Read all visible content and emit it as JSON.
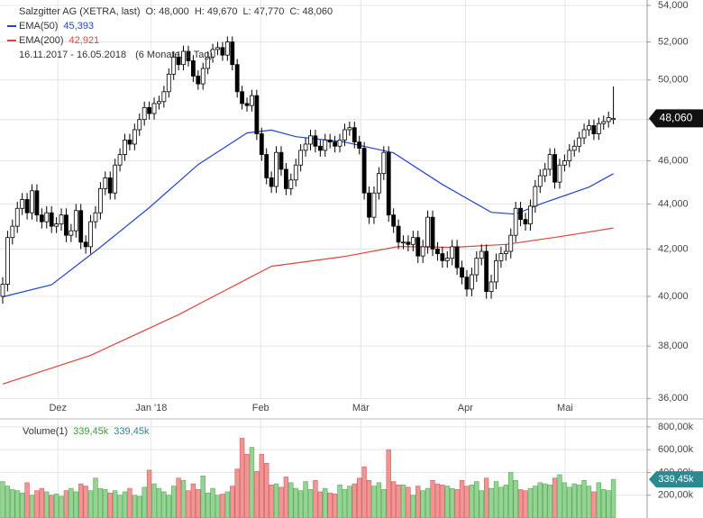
{
  "chart_data": {
    "type": "candlestick",
    "title": "Salzgitter AG (XETRA, last)",
    "ohlc_labels": [
      "O: 48,000",
      "H: 49,670",
      "L: 47,770",
      "C: 48,060"
    ],
    "date_range": "16.11.2017 - 16.05.2018",
    "period": "(6 Monate, 1 Tag)",
    "last_label": "48,060",
    "log_scale": true,
    "grid": true,
    "ylim": [
      35.25,
      54.3
    ],
    "yticks": [
      {
        "value": 36,
        "label": "36,000"
      },
      {
        "value": 38,
        "label": "38,000"
      },
      {
        "value": 40,
        "label": "40,000"
      },
      {
        "value": 42,
        "label": "42,000"
      },
      {
        "value": 44,
        "label": "44,000"
      },
      {
        "value": 46,
        "label": "46,000"
      },
      {
        "value": 48,
        "label": "48,000"
      },
      {
        "value": 50,
        "label": "50,000"
      },
      {
        "value": 52,
        "label": "52,000"
      },
      {
        "value": 54,
        "label": "54,000"
      }
    ],
    "xlim": [
      -0.55,
      131.9
    ],
    "xticks": [
      {
        "value": 11.3,
        "label": "Dez"
      },
      {
        "value": 30.4,
        "label": "Jan '18"
      },
      {
        "value": 52.8,
        "label": "Feb"
      },
      {
        "value": 73.3,
        "label": "Mär"
      },
      {
        "value": 94.7,
        "label": "Apr"
      },
      {
        "value": 115.1,
        "label": "Mai"
      }
    ],
    "up_color": "#ffffff",
    "down_color": "#000000",
    "candles": [
      [
        40,
        40.8,
        39.7,
        40.5
      ],
      [
        40.5,
        42.8,
        40.2,
        42.5
      ],
      [
        42.5,
        43.3,
        42.2,
        43
      ],
      [
        43,
        44.1,
        42.7,
        43.8
      ],
      [
        43.8,
        44.5,
        43.5,
        44.2
      ],
      [
        44.2,
        44.5,
        43.3,
        43.6
      ],
      [
        43.6,
        44.9,
        43.3,
        44.6
      ],
      [
        44.6,
        44.9,
        43.2,
        43.5
      ],
      [
        43.5,
        43.8,
        42.9,
        43.2
      ],
      [
        43.2,
        43.9,
        42.9,
        43.6
      ],
      [
        43.6,
        43.9,
        42.7,
        43
      ],
      [
        43,
        43.4,
        42.7,
        43.1
      ],
      [
        43.1,
        43.8,
        42.8,
        43.5
      ],
      [
        43.5,
        43.8,
        42.3,
        42.6
      ],
      [
        42.6,
        43.1,
        42.3,
        42.8
      ],
      [
        42.8,
        44,
        42.5,
        43.7
      ],
      [
        43.7,
        44,
        42,
        42.3
      ],
      [
        42.3,
        42.6,
        41.8,
        42.1
      ],
      [
        42.1,
        43.5,
        41.8,
        43.2
      ],
      [
        43.2,
        43.9,
        42.9,
        43.6
      ],
      [
        43.6,
        45,
        43.3,
        44.7
      ],
      [
        44.7,
        45.5,
        44.4,
        45.2
      ],
      [
        45.2,
        45.5,
        44.2,
        44.5
      ],
      [
        44.5,
        46.1,
        44.2,
        45.8
      ],
      [
        45.8,
        46.6,
        45.5,
        46.3
      ],
      [
        46.3,
        47.3,
        46,
        47
      ],
      [
        47,
        47.3,
        46.5,
        46.8
      ],
      [
        46.8,
        47.8,
        46.5,
        47.5
      ],
      [
        47.5,
        48.3,
        47.2,
        48
      ],
      [
        48,
        48.9,
        47.7,
        48.6
      ],
      [
        48.6,
        48.9,
        48,
        48.3
      ],
      [
        48.3,
        49.1,
        48,
        48.8
      ],
      [
        48.8,
        49.2,
        48.5,
        48.9
      ],
      [
        48.9,
        49.7,
        48.6,
        49.4
      ],
      [
        49.4,
        50.6,
        49.1,
        50.3
      ],
      [
        50.3,
        51.5,
        50,
        51.2
      ],
      [
        51.2,
        51.5,
        50.5,
        50.8
      ],
      [
        50.8,
        51.8,
        50.5,
        51.5
      ],
      [
        51.5,
        51.8,
        50.7,
        51
      ],
      [
        51,
        51.3,
        49.9,
        50.2
      ],
      [
        50.2,
        50.5,
        49.5,
        49.8
      ],
      [
        49.8,
        50.9,
        49.5,
        50.6
      ],
      [
        50.6,
        51.5,
        50.3,
        51.2
      ],
      [
        51.2,
        51.9,
        50.9,
        51.6
      ],
      [
        51.6,
        52,
        51.3,
        51.7
      ],
      [
        51.7,
        52,
        51,
        51.3
      ],
      [
        51.3,
        52.3,
        51,
        52
      ],
      [
        52,
        52.3,
        50.5,
        50.8
      ],
      [
        50.8,
        51.1,
        49.1,
        49.4
      ],
      [
        49.4,
        49.7,
        48.5,
        48.8
      ],
      [
        48.8,
        49.1,
        48.4,
        48.7
      ],
      [
        48.7,
        49.5,
        48.4,
        49.2
      ],
      [
        49.2,
        49.5,
        47,
        47.3
      ],
      [
        47.3,
        47.6,
        46,
        46.3
      ],
      [
        46.3,
        46.6,
        44.9,
        45.2
      ],
      [
        45.2,
        45.5,
        44.5,
        44.8
      ],
      [
        44.8,
        46.7,
        44.5,
        46.4
      ],
      [
        46.4,
        46.7,
        45.3,
        45.6
      ],
      [
        45.6,
        45.9,
        44.4,
        44.7
      ],
      [
        44.7,
        45.4,
        44.4,
        45.1
      ],
      [
        45.1,
        46.1,
        44.8,
        45.8
      ],
      [
        45.8,
        46.8,
        45.5,
        46.5
      ],
      [
        46.5,
        47.1,
        46.2,
        46.8
      ],
      [
        46.8,
        47.5,
        46.5,
        47.2
      ],
      [
        47.2,
        47.5,
        46.4,
        46.7
      ],
      [
        46.7,
        47,
        46.2,
        46.5
      ],
      [
        46.5,
        47.3,
        46.2,
        47
      ],
      [
        47,
        47.3,
        46.6,
        46.9
      ],
      [
        46.9,
        47.2,
        46.4,
        46.7
      ],
      [
        46.7,
        47.3,
        46.4,
        47
      ],
      [
        47,
        47.8,
        46.7,
        47.5
      ],
      [
        47.5,
        47.9,
        47.2,
        47.6
      ],
      [
        47.6,
        47.9,
        46.6,
        46.9
      ],
      [
        46.9,
        47.2,
        46.3,
        46.6
      ],
      [
        46.6,
        46.9,
        44.2,
        44.5
      ],
      [
        44.5,
        44.8,
        43.1,
        43.4
      ],
      [
        43.4,
        44.8,
        43.1,
        44.5
      ],
      [
        44.5,
        45.7,
        44.2,
        45.4
      ],
      [
        45.4,
        46.7,
        45.1,
        46.4
      ],
      [
        46.4,
        46.7,
        43.2,
        43.5
      ],
      [
        43.5,
        43.8,
        42.7,
        43
      ],
      [
        43,
        43.3,
        42,
        42.3
      ],
      [
        42.3,
        42.6,
        42,
        42.3
      ],
      [
        42.3,
        42.6,
        41.9,
        42.2
      ],
      [
        42.2,
        42.8,
        41.9,
        42.5
      ],
      [
        42.5,
        42.8,
        41.4,
        41.7
      ],
      [
        41.7,
        42.4,
        41.4,
        42.1
      ],
      [
        42.1,
        43.7,
        41.8,
        43.4
      ],
      [
        43.4,
        43.7,
        41.7,
        42
      ],
      [
        42,
        42.3,
        41.5,
        41.8
      ],
      [
        41.8,
        42.1,
        41.2,
        41.5
      ],
      [
        41.5,
        41.9,
        41.2,
        41.6
      ],
      [
        41.6,
        42.4,
        41.3,
        42.1
      ],
      [
        42.1,
        42.4,
        40.9,
        41.2
      ],
      [
        41.2,
        41.5,
        40.5,
        40.8
      ],
      [
        40.8,
        41.1,
        40,
        40.3
      ],
      [
        40.3,
        41.2,
        40,
        40.9
      ],
      [
        40.9,
        41.9,
        40.6,
        41.6
      ],
      [
        41.6,
        42.2,
        41.3,
        41.9
      ],
      [
        41.9,
        42.2,
        39.9,
        40.2
      ],
      [
        40.2,
        40.9,
        39.9,
        40.6
      ],
      [
        40.6,
        41.8,
        40.3,
        41.5
      ],
      [
        41.5,
        42.1,
        41.2,
        41.8
      ],
      [
        41.8,
        42.2,
        41.5,
        41.9
      ],
      [
        41.9,
        42.9,
        41.6,
        42.6
      ],
      [
        42.6,
        44.1,
        42.3,
        43.8
      ],
      [
        43.8,
        44.1,
        43,
        43.3
      ],
      [
        43.3,
        43.6,
        42.8,
        43.1
      ],
      [
        43.1,
        44.2,
        42.8,
        43.9
      ],
      [
        43.9,
        45.1,
        43.6,
        44.8
      ],
      [
        44.8,
        45.6,
        44.5,
        45.3
      ],
      [
        45.3,
        45.9,
        45,
        45.6
      ],
      [
        45.6,
        46.6,
        45.3,
        46.3
      ],
      [
        46.3,
        46.6,
        44.7,
        45
      ],
      [
        45,
        46.1,
        44.7,
        45.8
      ],
      [
        45.8,
        46.3,
        45.5,
        46
      ],
      [
        46,
        46.8,
        45.7,
        46.5
      ],
      [
        46.5,
        47,
        46.2,
        46.7
      ],
      [
        46.7,
        47.4,
        46.4,
        47.1
      ],
      [
        47.1,
        47.8,
        46.8,
        47.5
      ],
      [
        47.5,
        48,
        47.2,
        47.7
      ],
      [
        47.7,
        48,
        47,
        47.3
      ],
      [
        47.3,
        48.1,
        47,
        47.8
      ],
      [
        47.8,
        48.2,
        47.5,
        47.9
      ],
      [
        47.9,
        48.4,
        47.6,
        48.1
      ],
      [
        48,
        49.67,
        47.77,
        48.06
      ]
    ],
    "overlays": [
      {
        "name": "EMA(50)",
        "color": "#2244cc",
        "value_label": "45,393",
        "x": [
          0,
          10,
          20,
          30,
          40,
          50,
          55,
          60,
          70,
          80,
          90,
          100,
          105,
          110,
          120,
          125
        ],
        "values": [
          39.98,
          40.48,
          42.08,
          43.83,
          45.82,
          47.34,
          47.48,
          47.16,
          46.9,
          46.38,
          44.89,
          43.62,
          43.54,
          43.99,
          44.77,
          45.393
        ]
      },
      {
        "name": "EMA(200)",
        "color": "#e0433a",
        "value_label": "42,921",
        "x": [
          0,
          18,
          36,
          55,
          70,
          81,
          92,
          103,
          114,
          125
        ],
        "values": [
          36.54,
          37.64,
          39.25,
          41.26,
          41.68,
          42.11,
          42.07,
          42.2,
          42.54,
          42.921
        ]
      }
    ],
    "volume": {
      "name": "Volume(1)",
      "last_label": "339,45k",
      "ylim": [
        0,
        870
      ],
      "up_color": "#93d493",
      "down_color": "#f09494",
      "badge_color": "#2a8a8f",
      "yticks": [
        {
          "value": 200,
          "label": "200,00k"
        },
        {
          "value": 400,
          "label": "400,00k"
        },
        {
          "value": 600,
          "label": "600,00k"
        },
        {
          "value": 800,
          "label": "800,00k"
        }
      ],
      "values": [
        320,
        280,
        250,
        240,
        220,
        310,
        200,
        240,
        260,
        230,
        200,
        210,
        190,
        240,
        260,
        230,
        300,
        280,
        240,
        350,
        260,
        250,
        220,
        240,
        200,
        230,
        260,
        200,
        190,
        270,
        420,
        300,
        260,
        230,
        200,
        280,
        350,
        330,
        240,
        300,
        250,
        370,
        220,
        260,
        200,
        210,
        230,
        280,
        430,
        700,
        560,
        620,
        410,
        560,
        480,
        290,
        300,
        270,
        360,
        310,
        260,
        240,
        320,
        250,
        330,
        230,
        260,
        220,
        210,
        290,
        250,
        280,
        300,
        350,
        450,
        330,
        280,
        310,
        250,
        600,
        320,
        290,
        290,
        270,
        200,
        280,
        240,
        260,
        330,
        300,
        290,
        280,
        260,
        250,
        330,
        280,
        290,
        320,
        240,
        350,
        260,
        320,
        270,
        290,
        400,
        330,
        250,
        240,
        260,
        280,
        310,
        300,
        290,
        350,
        380,
        310,
        270,
        300,
        290,
        330,
        280,
        230,
        310,
        250,
        240,
        339.45
      ]
    }
  }
}
